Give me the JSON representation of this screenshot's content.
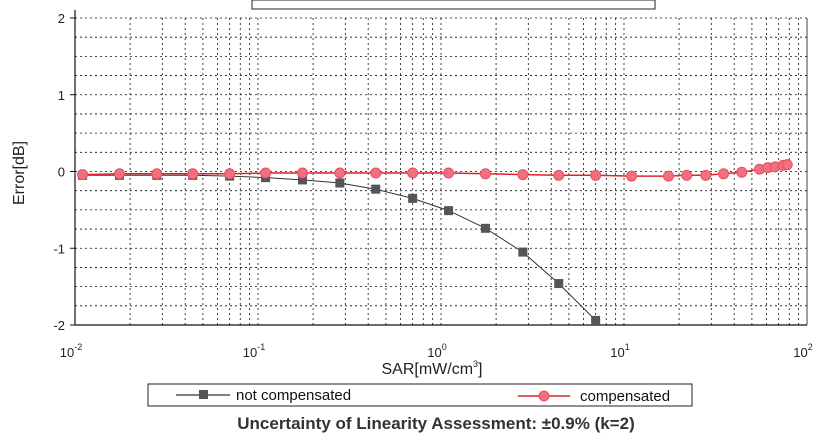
{
  "chart_data": {
    "type": "line",
    "title": "",
    "xlabel": "SAR[mW/cm",
    "xlabel_sup": "3",
    "xlabel_tail": "]",
    "ylabel": "Error[dB]",
    "xscale": "log",
    "xlim": [
      0.01,
      100
    ],
    "ylim": [
      -2,
      2
    ],
    "grid": true,
    "legend": "bottom",
    "x_tick_labels": [
      {
        "value": 0.01,
        "base": "10",
        "exp": "-2"
      },
      {
        "value": 0.1,
        "base": "10",
        "exp": "-1"
      },
      {
        "value": 1,
        "base": "10",
        "exp": "0"
      },
      {
        "value": 10,
        "base": "10",
        "exp": "1"
      },
      {
        "value": 100,
        "base": "10",
        "exp": "2"
      }
    ],
    "y_ticks": [
      2,
      1,
      0,
      -1,
      -2
    ],
    "series": [
      {
        "name": "not compensated",
        "color": "#555555",
        "line_color": "#333333",
        "marker": "square",
        "points": [
          [
            0.011,
            -0.05
          ],
          [
            0.0175,
            -0.05
          ],
          [
            0.028,
            -0.05
          ],
          [
            0.044,
            -0.05
          ],
          [
            0.07,
            -0.06
          ],
          [
            0.11,
            -0.08
          ],
          [
            0.175,
            -0.11
          ],
          [
            0.28,
            -0.15
          ],
          [
            0.44,
            -0.23
          ],
          [
            0.7,
            -0.35
          ],
          [
            1.1,
            -0.51
          ],
          [
            1.75,
            -0.74
          ],
          [
            2.8,
            -1.05
          ],
          [
            4.4,
            -1.46
          ],
          [
            7.0,
            -1.94
          ]
        ]
      },
      {
        "name": "compensated",
        "color": "#f07080",
        "line_color": "#e0202e",
        "marker": "circle",
        "points": [
          [
            0.011,
            -0.04
          ],
          [
            0.0175,
            -0.03
          ],
          [
            0.028,
            -0.03
          ],
          [
            0.044,
            -0.03
          ],
          [
            0.07,
            -0.03
          ],
          [
            0.11,
            -0.02
          ],
          [
            0.175,
            -0.02
          ],
          [
            0.28,
            -0.02
          ],
          [
            0.44,
            -0.02
          ],
          [
            0.7,
            -0.02
          ],
          [
            1.1,
            -0.02
          ],
          [
            1.75,
            -0.03
          ],
          [
            2.8,
            -0.04
          ],
          [
            4.4,
            -0.05
          ],
          [
            7.0,
            -0.05
          ],
          [
            11,
            -0.06
          ],
          [
            17.5,
            -0.06
          ],
          [
            22,
            -0.05
          ],
          [
            28,
            -0.05
          ],
          [
            35,
            -0.03
          ],
          [
            44,
            -0.01
          ],
          [
            55,
            0.03
          ],
          [
            61,
            0.05
          ],
          [
            67,
            0.06
          ],
          [
            74,
            0.08
          ],
          [
            78,
            0.09
          ]
        ]
      }
    ],
    "caption": "Uncertainty of Linearity Assessment: ±0.9% (k=2)"
  }
}
